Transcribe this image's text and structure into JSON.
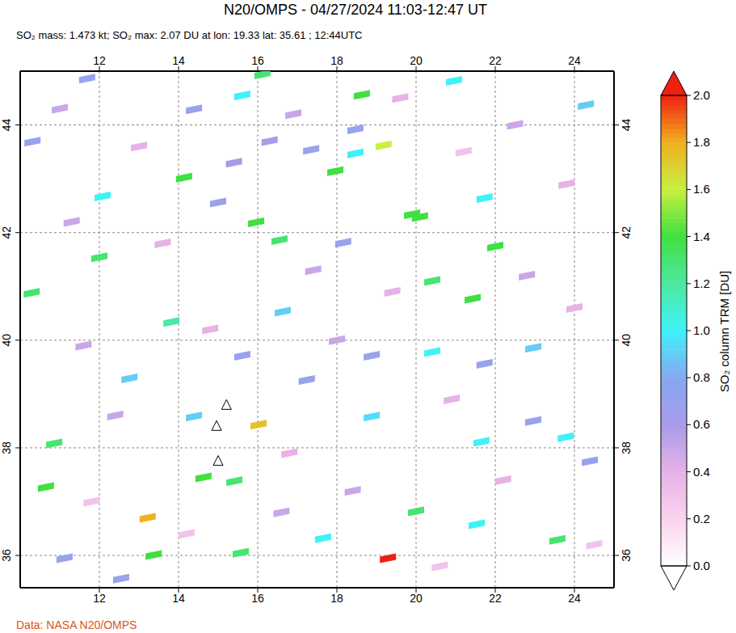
{
  "chart_data": {
    "type": "map",
    "title": "N20/OMPS - 04/27/2024 11:03-12:47 UT",
    "subtitle": "SO₂ mass: 1.473 kt; SO₂ max: 2.07 DU at lon: 19.33 lat: 35.61 ; 12:44UTC",
    "source": "Data: NASA N20/OMPS",
    "xlim": [
      10,
      25
    ],
    "ylim": [
      35.4,
      45
    ],
    "xticks": [
      12,
      14,
      16,
      18,
      20,
      22,
      24
    ],
    "yticks": [
      36,
      38,
      40,
      42,
      44
    ],
    "grid": true,
    "colorbar": {
      "label": "SO₂ column TRM [DU]",
      "range": [
        0,
        2
      ],
      "ticks": [
        {
          "value": 0,
          "label": "0.0"
        },
        {
          "value": 0.2,
          "label": "0.2"
        },
        {
          "value": 0.4,
          "label": "0.4"
        },
        {
          "value": 0.6,
          "label": "0.6"
        },
        {
          "value": 0.8,
          "label": "0.8"
        },
        {
          "value": 1,
          "label": "1.0"
        },
        {
          "value": 1.2,
          "label": "1.2"
        },
        {
          "value": 1.4,
          "label": "1.4"
        },
        {
          "value": 1.6,
          "label": "1.6"
        },
        {
          "value": 1.8,
          "label": "1.8"
        },
        {
          "value": 2,
          "label": "2.0"
        }
      ]
    },
    "cells": [
      {
        "lon": 18.63,
        "lat": 44.56,
        "value": 1.4
      },
      {
        "lon": 16.12,
        "lat": 44.94,
        "value": 1.3
      },
      {
        "lon": 17.96,
        "lat": 43.14,
        "value": 1.4
      },
      {
        "lon": 14.14,
        "lat": 43.02,
        "value": 1.4
      },
      {
        "lon": 15.96,
        "lat": 42.19,
        "value": 1.4
      },
      {
        "lon": 16.55,
        "lat": 41.86,
        "value": 1.3
      },
      {
        "lon": 12.0,
        "lat": 41.54,
        "value": 1.3
      },
      {
        "lon": 10.29,
        "lat": 40.88,
        "value": 1.3
      },
      {
        "lon": 13.82,
        "lat": 40.34,
        "value": 1.2
      },
      {
        "lon": 19.18,
        "lat": 43.62,
        "value": 1.6
      },
      {
        "lon": 19.9,
        "lat": 42.34,
        "value": 1.4
      },
      {
        "lon": 20.1,
        "lat": 42.29,
        "value": 1.4
      },
      {
        "lon": 20.41,
        "lat": 41.1,
        "value": 1.3
      },
      {
        "lon": 21.43,
        "lat": 40.77,
        "value": 1.4
      },
      {
        "lon": 22.0,
        "lat": 41.74,
        "value": 1.4
      },
      {
        "lon": 10.86,
        "lat": 38.08,
        "value": 1.3
      },
      {
        "lon": 10.65,
        "lat": 37.27,
        "value": 1.4
      },
      {
        "lon": 14.63,
        "lat": 37.45,
        "value": 1.4
      },
      {
        "lon": 15.41,
        "lat": 37.38,
        "value": 1.3
      },
      {
        "lon": 16.02,
        "lat": 38.43,
        "value": 1.75
      },
      {
        "lon": 13.22,
        "lat": 36.7,
        "value": 1.8
      },
      {
        "lon": 13.37,
        "lat": 36.01,
        "value": 1.4
      },
      {
        "lon": 15.57,
        "lat": 36.05,
        "value": 1.3
      },
      {
        "lon": 19.29,
        "lat": 35.95,
        "value": 2.07
      },
      {
        "lon": 20.0,
        "lat": 36.82,
        "value": 1.3
      },
      {
        "lon": 21.65,
        "lat": 38.11,
        "value": 1.0
      },
      {
        "lon": 23.57,
        "lat": 36.29,
        "value": 1.3
      },
      {
        "lon": 12.08,
        "lat": 42.67,
        "value": 1.0
      },
      {
        "lon": 15.61,
        "lat": 44.55,
        "value": 1.0
      },
      {
        "lon": 18.47,
        "lat": 43.47,
        "value": 1.0
      },
      {
        "lon": 20.96,
        "lat": 44.82,
        "value": 1.0
      },
      {
        "lon": 21.73,
        "lat": 42.64,
        "value": 1.0
      },
      {
        "lon": 20.41,
        "lat": 39.78,
        "value": 1.0
      },
      {
        "lon": 18.88,
        "lat": 38.58,
        "value": 0.95
      },
      {
        "lon": 17.65,
        "lat": 36.32,
        "value": 1.0
      },
      {
        "lon": 14.39,
        "lat": 38.58,
        "value": 0.9
      },
      {
        "lon": 16.63,
        "lat": 40.53,
        "value": 0.9
      },
      {
        "lon": 12.76,
        "lat": 39.29,
        "value": 0.9
      },
      {
        "lon": 23.78,
        "lat": 38.2,
        "value": 1.0
      },
      {
        "lon": 22.96,
        "lat": 39.86,
        "value": 0.9
      },
      {
        "lon": 21.53,
        "lat": 36.58,
        "value": 1.0
      },
      {
        "lon": 24.29,
        "lat": 44.37,
        "value": 0.9
      },
      {
        "lon": 11.69,
        "lat": 44.86,
        "value": 0.7
      },
      {
        "lon": 14.39,
        "lat": 44.29,
        "value": 0.7
      },
      {
        "lon": 17.35,
        "lat": 43.54,
        "value": 0.7
      },
      {
        "lon": 18.47,
        "lat": 43.92,
        "value": 0.7
      },
      {
        "lon": 18.16,
        "lat": 41.81,
        "value": 0.7
      },
      {
        "lon": 18.88,
        "lat": 39.71,
        "value": 0.7
      },
      {
        "lon": 15.61,
        "lat": 39.71,
        "value": 0.7
      },
      {
        "lon": 17.24,
        "lat": 39.26,
        "value": 0.7
      },
      {
        "lon": 11.12,
        "lat": 35.95,
        "value": 0.7
      },
      {
        "lon": 12.55,
        "lat": 35.57,
        "value": 0.7
      },
      {
        "lon": 22.96,
        "lat": 38.5,
        "value": 0.7
      },
      {
        "lon": 21.73,
        "lat": 39.56,
        "value": 0.7
      },
      {
        "lon": 24.39,
        "lat": 37.75,
        "value": 0.7
      },
      {
        "lon": 10.31,
        "lat": 43.69,
        "value": 0.7
      },
      {
        "lon": 15.0,
        "lat": 42.56,
        "value": 0.7
      },
      {
        "lon": 11.0,
        "lat": 44.3,
        "value": 0.5
      },
      {
        "lon": 13.0,
        "lat": 43.6,
        "value": 0.4
      },
      {
        "lon": 16.9,
        "lat": 44.2,
        "value": 0.5
      },
      {
        "lon": 19.6,
        "lat": 44.5,
        "value": 0.4
      },
      {
        "lon": 22.5,
        "lat": 44.0,
        "value": 0.5
      },
      {
        "lon": 23.8,
        "lat": 42.9,
        "value": 0.4
      },
      {
        "lon": 11.3,
        "lat": 42.2,
        "value": 0.5
      },
      {
        "lon": 13.6,
        "lat": 41.8,
        "value": 0.4
      },
      {
        "lon": 17.4,
        "lat": 41.3,
        "value": 0.5
      },
      {
        "lon": 19.4,
        "lat": 40.9,
        "value": 0.4
      },
      {
        "lon": 22.8,
        "lat": 41.2,
        "value": 0.5
      },
      {
        "lon": 24.0,
        "lat": 40.6,
        "value": 0.4
      },
      {
        "lon": 11.6,
        "lat": 39.9,
        "value": 0.5
      },
      {
        "lon": 14.8,
        "lat": 40.2,
        "value": 0.4
      },
      {
        "lon": 18.0,
        "lat": 40.0,
        "value": 0.5
      },
      {
        "lon": 20.9,
        "lat": 38.9,
        "value": 0.4
      },
      {
        "lon": 12.4,
        "lat": 38.6,
        "value": 0.5
      },
      {
        "lon": 16.8,
        "lat": 37.9,
        "value": 0.4
      },
      {
        "lon": 18.4,
        "lat": 37.2,
        "value": 0.5
      },
      {
        "lon": 22.2,
        "lat": 37.4,
        "value": 0.4
      },
      {
        "lon": 11.8,
        "lat": 37.0,
        "value": 0.3
      },
      {
        "lon": 14.2,
        "lat": 36.4,
        "value": 0.3
      },
      {
        "lon": 16.6,
        "lat": 36.8,
        "value": 0.5
      },
      {
        "lon": 20.6,
        "lat": 35.8,
        "value": 0.3
      },
      {
        "lon": 24.5,
        "lat": 36.2,
        "value": 0.3
      },
      {
        "lon": 21.2,
        "lat": 43.5,
        "value": 0.3
      },
      {
        "lon": 15.4,
        "lat": 43.3,
        "value": 0.6
      },
      {
        "lon": 16.3,
        "lat": 43.7,
        "value": 0.6
      }
    ],
    "volcanoes": [
      {
        "lon": 15.21,
        "lat": 38.79
      },
      {
        "lon": 14.96,
        "lat": 38.4
      },
      {
        "lon": 15.0,
        "lat": 37.75
      }
    ]
  }
}
